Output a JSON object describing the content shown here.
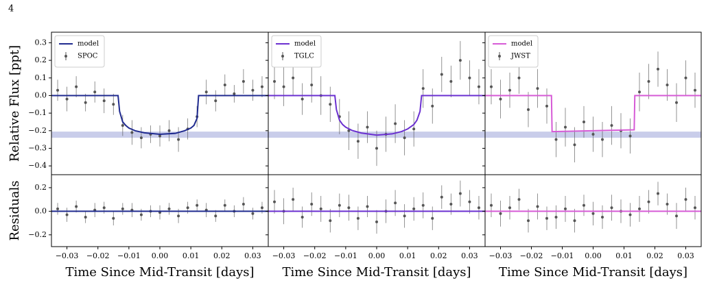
{
  "page_number": "4",
  "chart_data": [
    {
      "type": "errorbar",
      "ylabel": "Relative Flux [ppt]",
      "xlim": [
        -0.035,
        0.035
      ],
      "ylim": [
        -0.45,
        0.36
      ],
      "yticks": [
        0.3,
        0.2,
        0.1,
        {
          "value": 0,
          "label": "0.0"
        },
        {
          "value": -0.1,
          "label": "−0.1"
        },
        {
          "value": -0.2,
          "label": "−0.2"
        },
        {
          "value": -0.3,
          "label": "−0.3"
        },
        {
          "value": -0.4,
          "label": "−0.4"
        }
      ],
      "band": [
        -0.24,
        -0.205
      ],
      "band_color": "#c9cdea",
      "legend": "upper left",
      "series": [
        {
          "name": "model",
          "kind": "line",
          "color": "#1f2a8f",
          "x": [
            -0.035,
            -0.0135,
            -0.013,
            -0.012,
            -0.011,
            -0.01,
            -0.008,
            -0.005,
            0,
            0.005,
            0.008,
            0.01,
            0.011,
            0.012,
            0.0125,
            0.035
          ],
          "values": [
            0,
            0,
            -0.09,
            -0.15,
            -0.17,
            -0.185,
            -0.2,
            -0.212,
            -0.22,
            -0.215,
            -0.2,
            -0.185,
            -0.17,
            -0.13,
            0,
            0
          ]
        },
        {
          "name": "SPOC",
          "kind": "points",
          "color": "#555555",
          "x": [
            -0.033,
            -0.03,
            -0.027,
            -0.024,
            -0.021,
            -0.018,
            -0.015,
            -0.012,
            -0.009,
            -0.006,
            -0.003,
            0,
            0.003,
            0.006,
            0.009,
            0.012,
            0.015,
            0.018,
            0.021,
            0.024,
            0.027,
            0.03,
            0.033
          ],
          "values": [
            0.03,
            -0.02,
            0.05,
            -0.04,
            0.02,
            -0.03,
            -0.05,
            -0.17,
            -0.21,
            -0.24,
            -0.22,
            -0.23,
            -0.2,
            -0.25,
            -0.19,
            -0.12,
            0.02,
            -0.03,
            0.06,
            0.01,
            0.08,
            0.03,
            0.05
          ],
          "errors": [
            0.06,
            0.07,
            0.06,
            0.05,
            0.06,
            0.07,
            0.06,
            0.06,
            0.07,
            0.06,
            0.05,
            0.06,
            0.06,
            0.07,
            0.06,
            0.06,
            0.07,
            0.06,
            0.06,
            0.05,
            0.07,
            0.06,
            0.06
          ]
        }
      ]
    },
    {
      "type": "errorbar",
      "xlim": [
        -0.035,
        0.035
      ],
      "ylim": [
        -0.45,
        0.36
      ],
      "yticks": [
        0.3,
        0.2,
        0.1,
        0,
        -0.1,
        -0.2,
        -0.3,
        -0.4
      ],
      "band": [
        -0.24,
        -0.205
      ],
      "band_color": "#c9cdea",
      "legend": "upper left",
      "series": [
        {
          "name": "model",
          "kind": "line",
          "color": "#6a2fd0",
          "x": [
            -0.035,
            -0.0135,
            -0.013,
            -0.012,
            -0.011,
            -0.01,
            -0.008,
            -0.005,
            0,
            0.005,
            0.008,
            0.01,
            0.012,
            0.013,
            0.014,
            0.0145,
            0.035
          ],
          "values": [
            0,
            0,
            -0.08,
            -0.14,
            -0.165,
            -0.18,
            -0.198,
            -0.213,
            -0.225,
            -0.218,
            -0.205,
            -0.19,
            -0.165,
            -0.14,
            -0.09,
            0,
            0
          ]
        },
        {
          "name": "TGLC",
          "kind": "points",
          "color": "#555555",
          "x": [
            -0.033,
            -0.03,
            -0.027,
            -0.024,
            -0.021,
            -0.018,
            -0.015,
            -0.012,
            -0.009,
            -0.006,
            -0.003,
            0,
            0.003,
            0.006,
            0.009,
            0.012,
            0.015,
            0.018,
            0.021,
            0.024,
            0.027,
            0.03,
            0.033
          ],
          "values": [
            0.08,
            0.05,
            0.1,
            -0.02,
            0.06,
            0,
            -0.05,
            -0.12,
            -0.2,
            -0.26,
            -0.18,
            -0.3,
            -0.22,
            -0.16,
            -0.24,
            -0.19,
            0.04,
            -0.06,
            0.12,
            0.08,
            0.2,
            0.1,
            0.05
          ],
          "errors": [
            0.1,
            0.11,
            0.1,
            0.09,
            0.1,
            0.11,
            0.1,
            0.1,
            0.11,
            0.1,
            0.09,
            0.1,
            0.1,
            0.11,
            0.1,
            0.1,
            0.11,
            0.1,
            0.1,
            0.09,
            0.11,
            0.1,
            0.1
          ]
        }
      ]
    },
    {
      "type": "errorbar",
      "xlim": [
        -0.035,
        0.035
      ],
      "ylim": [
        -0.45,
        0.36
      ],
      "yticks": [
        0.3,
        0.2,
        0.1,
        0,
        -0.1,
        -0.2,
        -0.3,
        -0.4
      ],
      "band": [
        -0.24,
        -0.205
      ],
      "band_color": "#c9cdea",
      "legend": "upper left",
      "series": [
        {
          "name": "model",
          "kind": "line",
          "color": "#d65ad6",
          "x": [
            -0.035,
            -0.0135,
            -0.0133,
            0.0133,
            0.0135,
            0.035
          ],
          "values": [
            0,
            0,
            -0.205,
            -0.195,
            0,
            0
          ]
        },
        {
          "name": "JWST",
          "kind": "points",
          "color": "#555555",
          "x": [
            -0.033,
            -0.03,
            -0.027,
            -0.024,
            -0.021,
            -0.018,
            -0.015,
            -0.012,
            -0.009,
            -0.006,
            -0.003,
            0,
            0.003,
            0.006,
            0.009,
            0.012,
            0.015,
            0.018,
            0.021,
            0.024,
            0.027,
            0.03,
            0.033
          ],
          "values": [
            0.05,
            -0.02,
            0.03,
            0.1,
            -0.08,
            0.04,
            -0.06,
            -0.25,
            -0.18,
            -0.28,
            -0.15,
            -0.22,
            -0.25,
            -0.17,
            -0.2,
            -0.23,
            0.02,
            0.08,
            0.15,
            0.06,
            -0.04,
            0.1,
            0.03
          ],
          "errors": [
            0.1,
            0.11,
            0.1,
            0.09,
            0.1,
            0.11,
            0.1,
            0.1,
            0.11,
            0.1,
            0.09,
            0.1,
            0.1,
            0.11,
            0.1,
            0.1,
            0.11,
            0.1,
            0.1,
            0.09,
            0.11,
            0.1,
            0.1
          ]
        }
      ]
    },
    {
      "type": "errorbar",
      "ylabel": "Residuals",
      "xlabel": "Time Since Mid-Transit [days]",
      "xlim": [
        -0.035,
        0.035
      ],
      "ylim": [
        -0.3,
        0.31
      ],
      "xticks": [
        {
          "value": -0.03,
          "label": "−0.03"
        },
        {
          "value": -0.02,
          "label": "−0.02"
        },
        {
          "value": -0.01,
          "label": "−0.01"
        },
        {
          "value": 0,
          "label": "0.00"
        },
        0.01,
        0.02,
        0.03
      ],
      "yticks": [
        0.2,
        {
          "value": 0,
          "label": "0.0"
        },
        {
          "value": -0.2,
          "label": "−0.2"
        }
      ],
      "series": [
        {
          "kind": "line",
          "color": "#1f2a8f",
          "x": [
            -0.035,
            0.035
          ],
          "values": [
            0,
            0
          ]
        },
        {
          "kind": "points",
          "color": "#555555",
          "x": [
            -0.033,
            -0.03,
            -0.027,
            -0.024,
            -0.021,
            -0.018,
            -0.015,
            -0.012,
            -0.009,
            -0.006,
            -0.003,
            0,
            0.003,
            0.006,
            0.009,
            0.012,
            0.015,
            0.018,
            0.021,
            0.024,
            0.027,
            0.03,
            0.033
          ],
          "values": [
            0.02,
            -0.03,
            0.04,
            -0.05,
            0.01,
            0.03,
            -0.06,
            0.02,
            0.01,
            -0.03,
            0,
            -0.01,
            0.02,
            -0.04,
            0.03,
            0.05,
            0.01,
            -0.04,
            0.05,
            0,
            0.06,
            -0.02,
            0.03
          ],
          "errors": [
            0.05,
            0.06,
            0.05,
            0.05,
            0.06,
            0.05,
            0.06,
            0.05,
            0.06,
            0.05,
            0.05,
            0.06,
            0.05,
            0.06,
            0.05,
            0.05,
            0.06,
            0.05,
            0.05,
            0.05,
            0.06,
            0.05,
            0.05
          ]
        }
      ]
    },
    {
      "type": "errorbar",
      "xlabel": "Time Since Mid-Transit [days]",
      "xlim": [
        -0.035,
        0.035
      ],
      "ylim": [
        -0.3,
        0.31
      ],
      "xticks": [
        {
          "value": -0.03,
          "label": "−0.03"
        },
        {
          "value": -0.02,
          "label": "−0.02"
        },
        {
          "value": -0.01,
          "label": "−0.01"
        },
        {
          "value": 0,
          "label": "0.00"
        },
        0.01,
        0.02,
        0.03
      ],
      "yticks": [
        0.2,
        0,
        -0.2
      ],
      "series": [
        {
          "kind": "line",
          "color": "#6a2fd0",
          "x": [
            -0.035,
            0.035
          ],
          "values": [
            0,
            0
          ]
        },
        {
          "kind": "points",
          "color": "#555555",
          "x": [
            -0.033,
            -0.03,
            -0.027,
            -0.024,
            -0.021,
            -0.018,
            -0.015,
            -0.012,
            -0.009,
            -0.006,
            -0.003,
            0,
            0.003,
            0.006,
            0.009,
            0.012,
            0.015,
            0.018,
            0.021,
            0.024,
            0.027,
            0.03,
            0.033
          ],
          "values": [
            0.08,
            0,
            0.1,
            -0.05,
            0.06,
            0.02,
            -0.08,
            0.05,
            0.03,
            -0.06,
            0.04,
            -0.09,
            0,
            0.07,
            -0.04,
            0.02,
            0.05,
            -0.06,
            0.12,
            0.06,
            0.15,
            0.08,
            0.03
          ],
          "errors": [
            0.1,
            0.11,
            0.1,
            0.09,
            0.1,
            0.11,
            0.1,
            0.1,
            0.11,
            0.1,
            0.09,
            0.1,
            0.1,
            0.11,
            0.1,
            0.1,
            0.11,
            0.1,
            0.1,
            0.09,
            0.11,
            0.1,
            0.1
          ]
        }
      ]
    },
    {
      "type": "errorbar",
      "xlabel": "Time Since Mid-Transit [days]",
      "xlim": [
        -0.035,
        0.035
      ],
      "ylim": [
        -0.3,
        0.31
      ],
      "xticks": [
        {
          "value": -0.03,
          "label": "−0.03"
        },
        {
          "value": -0.02,
          "label": "−0.02"
        },
        {
          "value": -0.01,
          "label": "−0.01"
        },
        {
          "value": 0,
          "label": "0.00"
        },
        0.01,
        0.02,
        0.03
      ],
      "yticks": [
        0.2,
        0,
        -0.2
      ],
      "series": [
        {
          "kind": "line",
          "color": "#d65ad6",
          "x": [
            -0.035,
            0.035
          ],
          "values": [
            0,
            0
          ]
        },
        {
          "kind": "points",
          "color": "#555555",
          "x": [
            -0.033,
            -0.03,
            -0.027,
            -0.024,
            -0.021,
            -0.018,
            -0.015,
            -0.012,
            -0.009,
            -0.006,
            -0.003,
            0,
            0.003,
            0.006,
            0.009,
            0.012,
            0.015,
            0.018,
            0.021,
            0.024,
            0.027,
            0.03,
            0.033
          ],
          "values": [
            0.05,
            -0.02,
            0.03,
            0.1,
            -0.08,
            0.04,
            -0.06,
            -0.05,
            0.02,
            -0.08,
            0.05,
            -0.02,
            -0.05,
            0.03,
            0,
            -0.03,
            0.02,
            0.08,
            0.15,
            0.06,
            -0.04,
            0.1,
            0.03
          ],
          "errors": [
            0.1,
            0.11,
            0.1,
            0.09,
            0.1,
            0.11,
            0.1,
            0.1,
            0.11,
            0.1,
            0.09,
            0.1,
            0.1,
            0.11,
            0.1,
            0.1,
            0.11,
            0.1,
            0.1,
            0.09,
            0.11,
            0.1,
            0.1
          ]
        }
      ]
    }
  ]
}
